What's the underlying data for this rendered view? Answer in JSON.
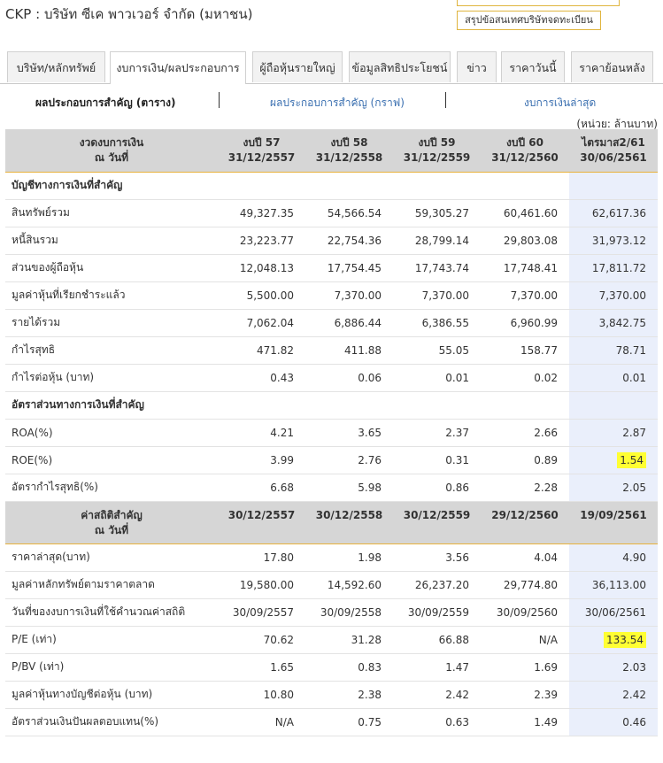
{
  "header": {
    "title": "CKP : บริษัท ซีเค พาวเวอร์ จำกัด (มหาชน)",
    "button": "สรุปข้อสนเทศบริษัทจดทะเบียน"
  },
  "tabs": [
    "บริษัท/หลักทรัพย์",
    "งบการเงิน/ผลประกอบการ",
    "ผู้ถือหุ้นรายใหญ่",
    "ข้อมูลสิทธิประโยชน์",
    "ข่าว",
    "ราคาวันนี้",
    "ราคาย้อนหลัง"
  ],
  "sub_links": [
    "ผลประกอบการสำคัญ (ตาราง)",
    "ผลประกอบการสำคัญ (กราฟ)",
    "งบการเงินล่าสุด"
  ],
  "unit": "(หน่วย: ล้านบาท)",
  "table": {
    "head": [
      [
        "งวดงบการเงิน",
        "ณ วันที่"
      ],
      [
        "งบปี 57",
        "31/12/2557"
      ],
      [
        "งบปี 58",
        "31/12/2558"
      ],
      [
        "งบปี 59",
        "31/12/2559"
      ],
      [
        "งบปี 60",
        "31/12/2560"
      ],
      [
        "ไตรมาส2/61",
        "30/06/2561"
      ]
    ],
    "sections": [
      {
        "title": "บัญชีทางการเงินที่สำคัญ",
        "rows": [
          {
            "label": "สินทรัพย์รวม",
            "values": [
              "49,327.35",
              "54,566.54",
              "59,305.27",
              "60,461.60",
              "62,617.36"
            ]
          },
          {
            "label": "หนี้สินรวม",
            "values": [
              "23,223.77",
              "22,754.36",
              "28,799.14",
              "29,803.08",
              "31,973.12"
            ]
          },
          {
            "label": "ส่วนของผู้ถือหุ้น",
            "values": [
              "12,048.13",
              "17,754.45",
              "17,743.74",
              "17,748.41",
              "17,811.72"
            ]
          },
          {
            "label": "มูลค่าหุ้นที่เรียกชำระแล้ว",
            "values": [
              "5,500.00",
              "7,370.00",
              "7,370.00",
              "7,370.00",
              "7,370.00"
            ]
          },
          {
            "label": "รายได้รวม",
            "values": [
              "7,062.04",
              "6,886.44",
              "6,386.55",
              "6,960.99",
              "3,842.75"
            ]
          },
          {
            "label": "กำไรสุทธิ",
            "values": [
              "471.82",
              "411.88",
              "55.05",
              "158.77",
              "78.71"
            ]
          },
          {
            "label": "กำไรต่อหุ้น (บาท)",
            "values": [
              "0.43",
              "0.06",
              "0.01",
              "0.02",
              "0.01"
            ]
          }
        ]
      },
      {
        "title": "อัตราส่วนทางการเงินที่สำคัญ",
        "rows": [
          {
            "label": "ROA(%)",
            "values": [
              "4.21",
              "3.65",
              "2.37",
              "2.66",
              "2.87"
            ]
          },
          {
            "label": "ROE(%)",
            "values": [
              "3.99",
              "2.76",
              "0.31",
              "0.89",
              "1.54"
            ]
          },
          {
            "label": "อัตรากำไรสุทธิ(%)",
            "values": [
              "6.68",
              "5.98",
              "0.86",
              "2.28",
              "2.05"
            ]
          }
        ]
      }
    ]
  },
  "stats": {
    "head": [
      [
        "ค่าสถิติสำคัญ",
        "ณ วันที่"
      ],
      [
        "30/12/2557"
      ],
      [
        "30/12/2558"
      ],
      [
        "30/12/2559"
      ],
      [
        "29/12/2560"
      ],
      [
        "19/09/2561"
      ]
    ],
    "rows": [
      {
        "label": "ราคาล่าสุด(บาท)",
        "values": [
          "17.80",
          "1.98",
          "3.56",
          "4.04",
          "4.90"
        ]
      },
      {
        "label": "มูลค่าหลักทรัพย์ตามราคาตลาด",
        "values": [
          "19,580.00",
          "14,592.60",
          "26,237.20",
          "29,774.80",
          "36,113.00"
        ]
      },
      {
        "label": "วันที่ของงบการเงินที่ใช้คำนวณค่าสถิติ",
        "values": [
          "30/09/2557",
          "30/09/2558",
          "30/09/2559",
          "30/09/2560",
          "30/06/2561"
        ]
      },
      {
        "label": "P/E (เท่า)",
        "values": [
          "70.62",
          "31.28",
          "66.88",
          "N/A",
          "133.54"
        ]
      },
      {
        "label": "P/BV (เท่า)",
        "values": [
          "1.65",
          "0.83",
          "1.47",
          "1.69",
          "2.03"
        ]
      },
      {
        "label": "มูลค่าหุ้นทางบัญชีต่อหุ้น (บาท)",
        "values": [
          "10.80",
          "2.38",
          "2.42",
          "2.39",
          "2.42"
        ]
      },
      {
        "label": "อัตราส่วนเงินปันผลตอบแทน(%)",
        "values": [
          "N/A",
          "0.75",
          "0.63",
          "1.49",
          "0.46"
        ]
      }
    ]
  }
}
